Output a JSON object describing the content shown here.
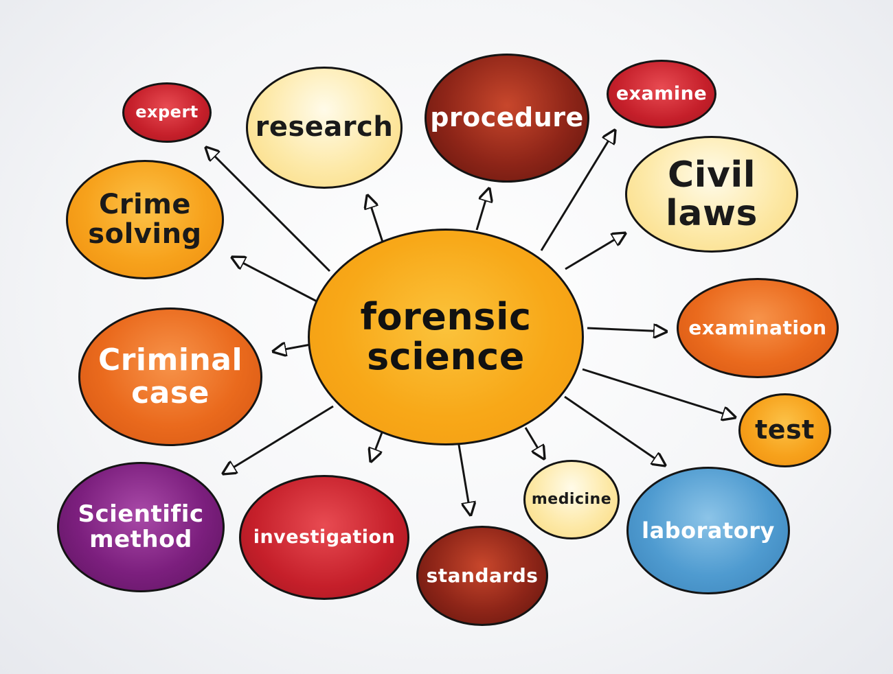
{
  "center": {
    "line1": "forensic",
    "line2": "science"
  },
  "nodes": {
    "expert": "expert",
    "research": "research",
    "procedure": "procedure",
    "examine": "examine",
    "civil_laws": {
      "line1": "Civil",
      "line2": "laws"
    },
    "crime_solving": {
      "line1": "Crime",
      "line2": "solving"
    },
    "examination": "examination",
    "criminal_case": {
      "line1": "Criminal",
      "line2": "case"
    },
    "test": "test",
    "scientific_method": {
      "line1": "Scientific",
      "line2": "method"
    },
    "investigation": "investigation",
    "standards": "standards",
    "medicine": "medicine",
    "laboratory": "laboratory"
  },
  "colors": {
    "yellow": "#fde9a8",
    "orange": "#f7a21c",
    "dark_orange": "#ea6a1d",
    "red": "#c51f2a",
    "dark_red": "#7a1d16",
    "purple": "#7c1f7e",
    "blue": "#4f9bd0"
  }
}
